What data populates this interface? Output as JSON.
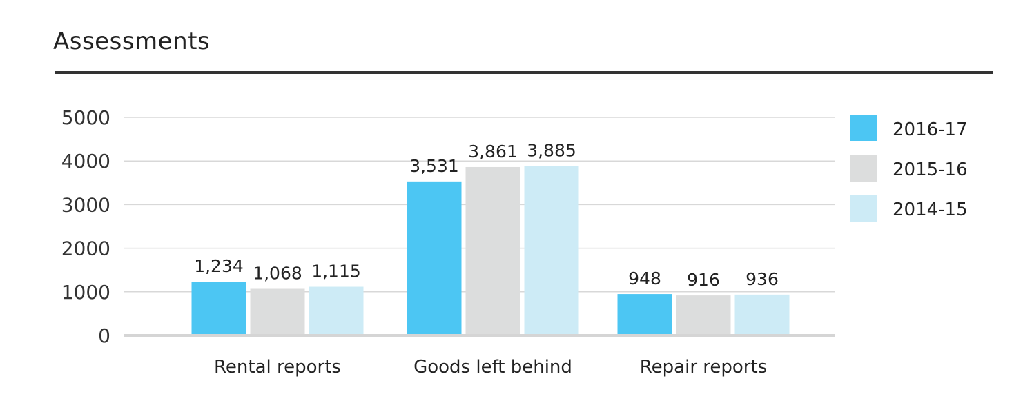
{
  "chart_data": {
    "type": "bar",
    "title": "Assessments",
    "categories": [
      "Rental reports",
      "Goods left behind",
      "Repair reports"
    ],
    "series": [
      {
        "name": "2016-17",
        "values": [
          1234,
          3531,
          948
        ],
        "labels": [
          "1,234",
          "3,531",
          "948"
        ],
        "color": "#4CC6F3"
      },
      {
        "name": "2015-16",
        "values": [
          1068,
          3861,
          916
        ],
        "labels": [
          "1,068",
          "3,861",
          "916"
        ],
        "color": "#DCDDDD"
      },
      {
        "name": "2014-15",
        "values": [
          1115,
          3885,
          936
        ],
        "labels": [
          "1,115",
          "3,885",
          "936"
        ],
        "color": "#CDEBF6"
      }
    ],
    "yticks": [
      "0",
      "1000",
      "2000",
      "3000",
      "4000",
      "5000"
    ],
    "ylim": [
      0,
      5000
    ],
    "grid": true,
    "legend": "right"
  }
}
